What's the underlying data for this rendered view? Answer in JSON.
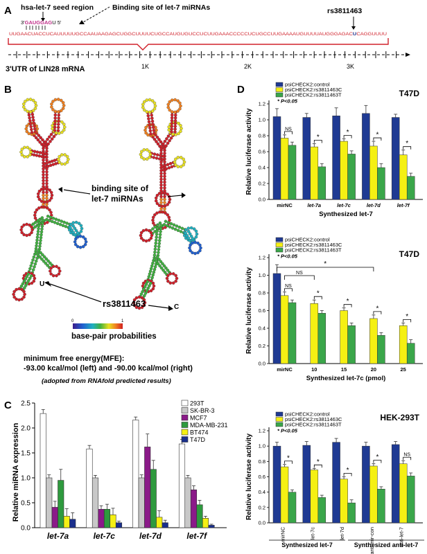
{
  "colors": {
    "blue": "#1f3a93",
    "yellow": "#f5f013",
    "green": "#3aa64a",
    "white": "#ffffff",
    "grey": "#c8c8c8",
    "purple": "#8b1a89",
    "darkgreen": "#2e9a3e",
    "navy": "#1a2f8c",
    "utr_red": "#d0202a"
  },
  "panelA": {
    "label": "A",
    "seed_label": "hsa-let-7 seed region",
    "binding_label": "Binding site of let-7 miRNAs",
    "snp_label": "rs3811463",
    "mirna_three": "3'",
    "mirna_seq": "GAUGGAG",
    "mirna_tail": "U 5'",
    "utr_seq_red": "UUGAACUACCUCAUUUUUGCCAAUAAGAGCUGGCUUUUCUGCCAUGUGUCCUCUUGAAACCCCCUCUGCCUUGAAAAUGUUUUAUGGGAGAC",
    "utr_snp": "U",
    "utr_seq_tail": "CAGGUUUU",
    "utr_caption": "3'UTR of LIN28 mRNA",
    "ticks": [
      "1K",
      "2K",
      "3K"
    ]
  },
  "panelB": {
    "label": "B",
    "binding_site": [
      "binding site of",
      "let-7 miRNAs"
    ],
    "snp": "rs3811463",
    "allele_left": "U",
    "allele_right": "C",
    "scale_min": "0",
    "scale_max": "1",
    "scale_label": "base-pair probabilities",
    "mfe_title": "minimum free energy(MFE):",
    "mfe_values": "-93.00 kcal/mol (left)  and -90.00 kcal/mol (right)",
    "note": "(adopted from RNAfold predicted results)"
  },
  "panelC": {
    "label": "C",
    "chart_data": {
      "type": "bar",
      "ylabel": "Relative miRNA expression",
      "ylim": [
        0,
        2.5
      ],
      "yticks": [
        "0.0",
        "0.5",
        "1.0",
        "1.5",
        "2.0",
        "2.5"
      ],
      "categories": [
        "let-7a",
        "let-7c",
        "let-7d",
        "let-7f"
      ],
      "series": [
        {
          "name": "293T",
          "color": "#ffffff",
          "values": [
            2.29,
            1.58,
            2.16,
            1.68
          ],
          "errors": [
            0.08,
            0.07,
            0.06,
            0.09
          ]
        },
        {
          "name": "SK-BR-3",
          "color": "#c8c8c8",
          "values": [
            1.0,
            1.0,
            1.0,
            1.0
          ],
          "errors": [
            0.06,
            0.05,
            0.06,
            0.05
          ]
        },
        {
          "name": "MCF7",
          "color": "#8b1a89",
          "values": [
            0.41,
            0.37,
            1.62,
            0.76
          ],
          "errors": [
            0.12,
            0.07,
            0.26,
            0.08
          ]
        },
        {
          "name": "MDA-MB-231",
          "color": "#2e9a3e",
          "values": [
            0.95,
            0.37,
            1.17,
            0.46
          ],
          "errors": [
            0.22,
            0.1,
            0.18,
            0.09
          ]
        },
        {
          "name": "BT474",
          "color": "#f5f013",
          "values": [
            0.23,
            0.26,
            0.21,
            0.19
          ],
          "errors": [
            0.15,
            0.13,
            0.13,
            0.04
          ]
        },
        {
          "name": "T47D",
          "color": "#1a2f8c",
          "values": [
            0.17,
            0.1,
            0.1,
            0.05
          ],
          "errors": [
            0.13,
            0.03,
            0.05,
            0.02
          ]
        }
      ]
    }
  },
  "panelD": {
    "label": "D",
    "legend": [
      "psiCHECK2:control",
      "psiCHECK2:rs3811463C",
      "psiCHECK2:rs3811463T"
    ],
    "pval": "* P<0.05",
    "ylabel": "Relative luciferase activity",
    "yticks": [
      "0.0",
      "0.2",
      "0.4",
      "0.6",
      "0.8",
      "1.0",
      "1.2"
    ],
    "charts": [
      {
        "title": "T47D",
        "type": "bar",
        "ylim": [
          0,
          1.2
        ],
        "categories": [
          "mirNC",
          "let-7a",
          "let-7c",
          "let-7d",
          "let-7f"
        ],
        "values": [
          [
            1.04,
            0.77,
            0.68
          ],
          [
            1.03,
            0.66,
            0.41
          ],
          [
            1.05,
            0.73,
            0.57
          ],
          [
            1.08,
            0.67,
            0.4
          ],
          [
            1.03,
            0.56,
            0.29
          ]
        ],
        "errors": [
          [
            0.1,
            0.04,
            0.04
          ],
          [
            0.05,
            0.04,
            0.04
          ],
          [
            0.1,
            0.03,
            0.04
          ],
          [
            0.1,
            0.06,
            0.05
          ],
          [
            0.04,
            0.06,
            0.04
          ]
        ],
        "sig": [
          "NS",
          "*",
          "*",
          "*",
          "*"
        ],
        "xlabel": "Synthesized let-7"
      },
      {
        "title": "T47D",
        "type": "bar",
        "ylim": [
          0,
          1.2
        ],
        "categories": [
          "mirNC",
          "10",
          "15",
          "20",
          "25"
        ],
        "values": [
          [
            1.02,
            0.77,
            0.69
          ],
          [
            null,
            0.68,
            0.57
          ],
          [
            null,
            0.6,
            0.43
          ],
          [
            null,
            0.51,
            0.32
          ],
          [
            null,
            0.43,
            0.23
          ]
        ],
        "errors": [
          [
            0.1,
            0.04,
            0.03
          ],
          [
            null,
            0.04,
            0.03
          ],
          [
            null,
            0.03,
            0.03
          ],
          [
            null,
            0.04,
            0.03
          ],
          [
            null,
            0.03,
            0.04
          ]
        ],
        "sig": [
          "NS",
          "*",
          "*",
          "*",
          "*"
        ],
        "xlabel": "Synthesized let-7c (pmol)",
        "brackets": [
          {
            "label": "NS"
          },
          {
            "label": "*"
          }
        ]
      },
      {
        "title": "HEK-293T",
        "type": "bar",
        "ylim": [
          0,
          1.2
        ],
        "categories": [
          "mirNC",
          "let-7c",
          "let-7d",
          "anti-mir-con",
          "anti-let-7"
        ],
        "values": [
          [
            1.0,
            0.73,
            0.4
          ],
          [
            1.01,
            0.69,
            0.33
          ],
          [
            1.05,
            0.57,
            0.26
          ],
          [
            1.0,
            0.74,
            0.44
          ],
          [
            1.02,
            0.77,
            0.61
          ]
        ],
        "errors": [
          [
            0.05,
            0.03,
            0.03
          ],
          [
            0.05,
            0.02,
            0.03
          ],
          [
            0.05,
            0.03,
            0.04
          ],
          [
            0.05,
            0.03,
            0.03
          ],
          [
            0.04,
            0.04,
            0.04
          ]
        ],
        "sig": [
          "*",
          "*",
          "*",
          "*",
          "NS"
        ],
        "group_labels": [
          "Synthesized let-7",
          "Synthesized anti-let-7"
        ]
      }
    ]
  }
}
